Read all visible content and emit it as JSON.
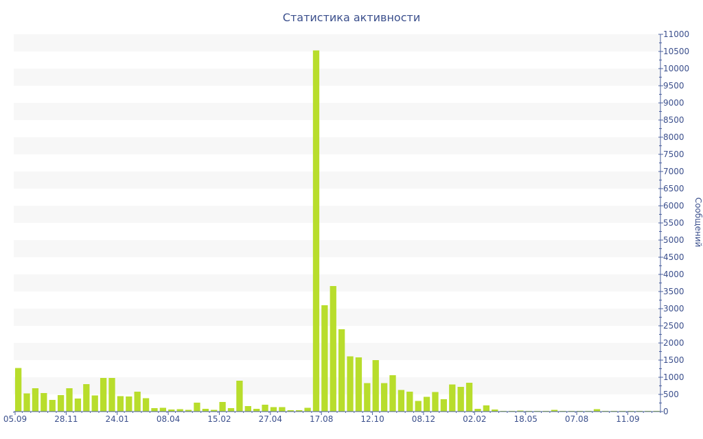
{
  "chart_data": {
    "type": "bar",
    "title": "Статистика активности",
    "ylabel": "Сообщений",
    "xlabel": "",
    "ylim": [
      0,
      11000
    ],
    "ytick_step": 500,
    "grid": "alternating horizontal bands",
    "y_axis_side": "right",
    "bar_color": "#b8dd2c",
    "text_color": "#3b4f8c",
    "x_tick_labels": [
      {
        "index": 0,
        "label": "05.09"
      },
      {
        "index": 6,
        "label": "28.11"
      },
      {
        "index": 12,
        "label": "24.01"
      },
      {
        "index": 18,
        "label": "08.04"
      },
      {
        "index": 24,
        "label": "15.02"
      },
      {
        "index": 30,
        "label": "27.04"
      },
      {
        "index": 36,
        "label": "17.08"
      },
      {
        "index": 42,
        "label": "12.10"
      },
      {
        "index": 48,
        "label": "08.12"
      },
      {
        "index": 54,
        "label": "02.02"
      },
      {
        "index": 60,
        "label": "18.05"
      },
      {
        "index": 66,
        "label": "07.08"
      },
      {
        "index": 72,
        "label": "11.09"
      }
    ],
    "values": [
      1270,
      530,
      680,
      540,
      340,
      480,
      680,
      380,
      800,
      470,
      980,
      980,
      450,
      440,
      580,
      390,
      100,
      110,
      60,
      70,
      50,
      260,
      80,
      50,
      280,
      100,
      900,
      160,
      80,
      200,
      130,
      130,
      40,
      40,
      110,
      10530,
      3100,
      3660,
      2400,
      1610,
      1580,
      830,
      1500,
      830,
      1060,
      630,
      580,
      310,
      430,
      570,
      360,
      790,
      720,
      840,
      80,
      180,
      60,
      20,
      20,
      30,
      20,
      20,
      20,
      50,
      20,
      20,
      20,
      20,
      70,
      20,
      20,
      20,
      20,
      20,
      20,
      20
    ]
  }
}
